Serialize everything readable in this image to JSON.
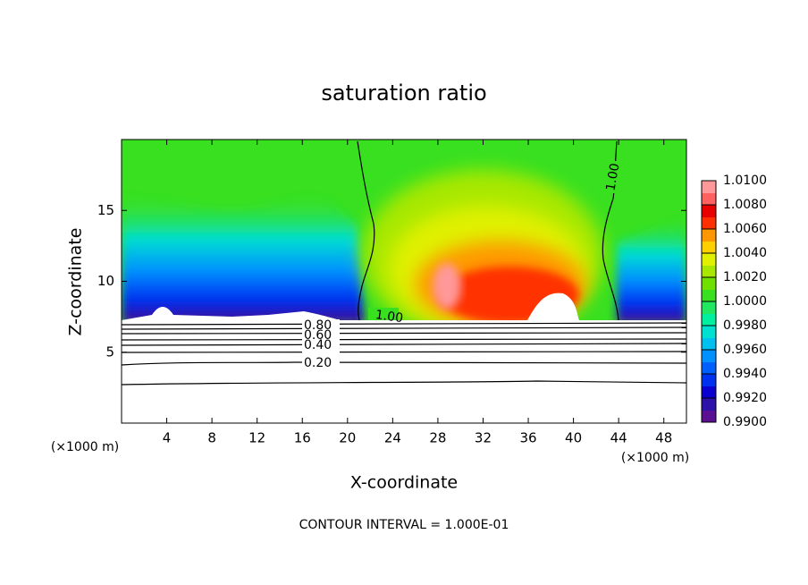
{
  "chart_data": {
    "type": "contour",
    "title": "saturation ratio",
    "x_label": "X-coordinate",
    "y_label": "Z-coordinate",
    "x_unit_left": "(×1000 m)",
    "x_unit_right": "(×1000 m)",
    "footer": "CONTOUR INTERVAL = 1.000E-01",
    "xlim": [
      0,
      50
    ],
    "xticks": [
      4,
      8,
      12,
      16,
      20,
      24,
      28,
      32,
      36,
      40,
      44,
      48
    ],
    "ylim": [
      0,
      20
    ],
    "yticks": [
      5,
      10,
      15
    ],
    "contours": [
      {
        "value": 1,
        "label": "1.00"
      },
      {
        "value": 0.8,
        "label": "0.80"
      },
      {
        "value": 0.6,
        "label": "0.60"
      },
      {
        "value": 0.4,
        "label": "0.40"
      },
      {
        "value": 0.2,
        "label": "0.20"
      },
      {
        "value": 1,
        "label": "1.00"
      }
    ],
    "colorbar": {
      "lim": [
        0.99,
        1.01
      ],
      "ticks": [
        {
          "value": 0.99,
          "label": "0.9900"
        },
        {
          "value": 0.992,
          "label": "0.9920"
        },
        {
          "value": 0.994,
          "label": "0.9940"
        },
        {
          "value": 0.996,
          "label": "0.9960"
        },
        {
          "value": 0.998,
          "label": "0.9980"
        },
        {
          "value": 1,
          "label": "1.0000"
        },
        {
          "value": 1.002,
          "label": "1.0020"
        },
        {
          "value": 1.004,
          "label": "1.0040"
        },
        {
          "value": 1.006,
          "label": "1.0060"
        },
        {
          "value": 1.008,
          "label": "1.0080"
        },
        {
          "value": 1.01,
          "label": "1.0100"
        }
      ],
      "colors": [
        "#5a1090",
        "#2c12a8",
        "#0a00d0",
        "#0030f0",
        "#0060ff",
        "#0090ff",
        "#00c0f0",
        "#00e0d0",
        "#00f0a0",
        "#20e860",
        "#38e020",
        "#70e000",
        "#a8e800",
        "#e0f000",
        "#ffd000",
        "#ff9800",
        "#ff3000",
        "#e80000",
        "#ff6060",
        "#ff9898"
      ]
    }
  }
}
